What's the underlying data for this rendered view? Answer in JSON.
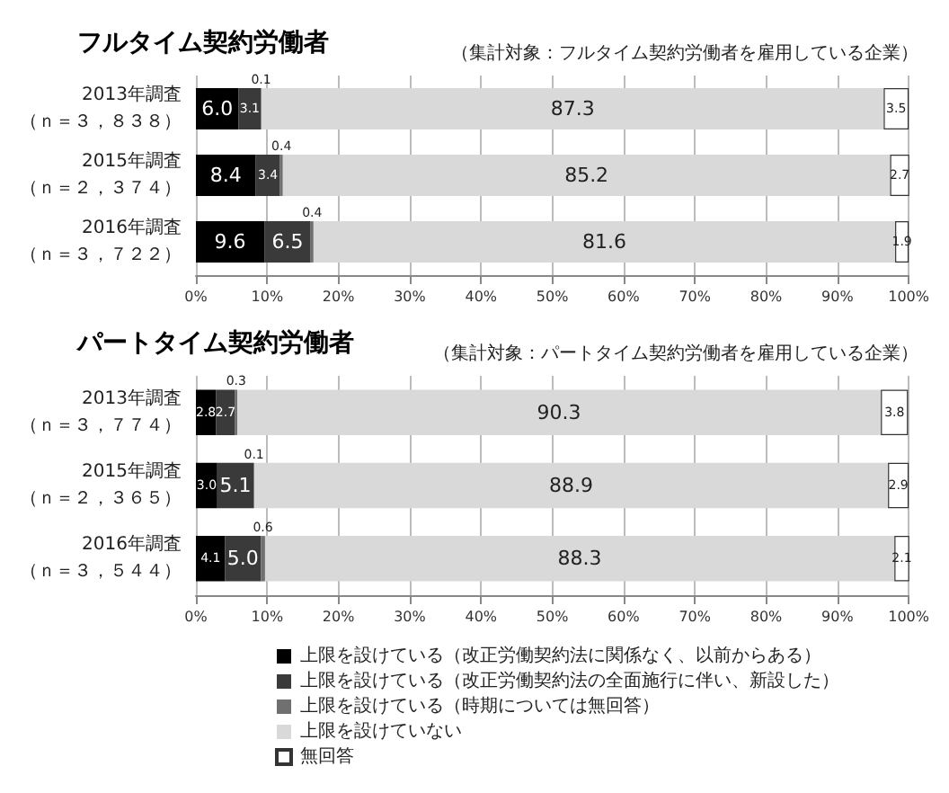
{
  "chart_data": [
    {
      "type": "bar",
      "orientation": "horizontal",
      "stacked": true,
      "title": "フルタイム契約労働者",
      "subtitle": "（集計対象：フルタイム契約労働者を雇用している企業）",
      "categories": [
        "2013年調査（ｎ＝３，８３８）",
        "2015年調査（ｎ＝２，３７４）",
        "2016年調査（ｎ＝３，７２２）"
      ],
      "series": [
        {
          "color": "#000000",
          "values": [
            6.0,
            8.4,
            9.6
          ],
          "value_labels": [
            "6.0",
            "8.4",
            "9.6"
          ]
        },
        {
          "color": "#3a3a3a",
          "values": [
            3.1,
            3.4,
            6.5
          ],
          "value_labels": [
            "3.1",
            "3.4",
            "6.5"
          ]
        },
        {
          "color": "#707070",
          "values": [
            0.1,
            0.4,
            0.4
          ],
          "value_labels": [
            "0.1",
            "0.4",
            "0.4"
          ]
        },
        {
          "color": "#d9d9d9",
          "values": [
            87.3,
            85.2,
            81.6
          ],
          "value_labels": [
            "87.3",
            "85.2",
            "81.6"
          ]
        },
        {
          "color": "#ffffff",
          "values": [
            3.5,
            2.7,
            1.9
          ],
          "value_labels": [
            "3.5",
            "2.7",
            "1.9"
          ]
        }
      ],
      "xlim": [
        0,
        100
      ],
      "xticks": [
        {
          "value": 0,
          "label": "0%"
        },
        {
          "value": 10,
          "label": "10%"
        },
        {
          "value": 20,
          "label": "20%"
        },
        {
          "value": 30,
          "label": "30%"
        },
        {
          "value": 40,
          "label": "40%"
        },
        {
          "value": 50,
          "label": "50%"
        },
        {
          "value": 60,
          "label": "60%"
        },
        {
          "value": 70,
          "label": "70%"
        },
        {
          "value": 80,
          "label": "80%"
        },
        {
          "value": 90,
          "label": "90%"
        },
        {
          "value": 100,
          "label": "100%"
        }
      ],
      "grid": "x"
    },
    {
      "type": "bar",
      "orientation": "horizontal",
      "stacked": true,
      "title": "パートタイム契約労働者",
      "subtitle": "（集計対象：パートタイム契約労働者を雇用している企業）",
      "categories": [
        "2013年調査（ｎ＝３，７７４）",
        "2015年調査（ｎ＝２，３６５）",
        "2016年調査（ｎ＝３，５４４）"
      ],
      "series": [
        {
          "name": "上限を設けている（改正労働契約法に関係なく、以前からある）",
          "color": "#000000",
          "values": [
            2.8,
            3.0,
            4.1
          ],
          "value_labels": [
            "2.8",
            "3.0",
            "4.1"
          ]
        },
        {
          "name": "上限を設けている（改正労働契約法の全面施行に伴い、新設した）",
          "color": "#3a3a3a",
          "values": [
            2.7,
            5.1,
            5.0
          ],
          "value_labels": [
            "2.7",
            "5.1",
            "5.0"
          ]
        },
        {
          "name": "上限を設けている（時期については無回答）",
          "color": "#707070",
          "values": [
            0.3,
            0.1,
            0.6
          ],
          "value_labels": [
            "0.3",
            "0.1",
            "0.6"
          ]
        },
        {
          "name": "上限を設けていない",
          "color": "#d9d9d9",
          "values": [
            90.3,
            88.9,
            88.3
          ],
          "value_labels": [
            "90.3",
            "88.9",
            "88.3"
          ]
        },
        {
          "name": "無回答",
          "color": "#ffffff",
          "values": [
            3.8,
            2.9,
            2.1
          ],
          "value_labels": [
            "3.8",
            "2.9",
            "2.1"
          ]
        }
      ],
      "xlim": [
        0,
        100
      ],
      "xticks": [
        {
          "value": 0,
          "label": "0%"
        },
        {
          "value": 10,
          "label": "10%"
        },
        {
          "value": 20,
          "label": "20%"
        },
        {
          "value": 30,
          "label": "30%"
        },
        {
          "value": 40,
          "label": "40%"
        },
        {
          "value": 50,
          "label": "50%"
        },
        {
          "value": 60,
          "label": "60%"
        },
        {
          "value": 70,
          "label": "70%"
        },
        {
          "value": 80,
          "label": "80%"
        },
        {
          "value": 90,
          "label": "90%"
        },
        {
          "value": 100,
          "label": "100%"
        }
      ],
      "grid": "x",
      "legend": "bottom"
    }
  ]
}
